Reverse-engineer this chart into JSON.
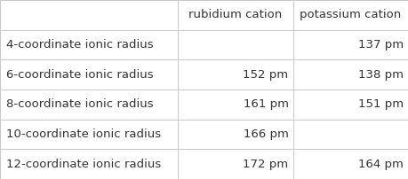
{
  "col_headers": [
    "",
    "rubidium cation",
    "potassium cation"
  ],
  "row_labels": [
    "4-coordinate ionic radius",
    "6-coordinate ionic radius",
    "8-coordinate ionic radius",
    "10-coordinate ionic radius",
    "12-coordinate ionic radius"
  ],
  "cell_data": [
    [
      "",
      "137 pm"
    ],
    [
      "152 pm",
      "138 pm"
    ],
    [
      "161 pm",
      "151 pm"
    ],
    [
      "166 pm",
      ""
    ],
    [
      "172 pm",
      "164 pm"
    ]
  ],
  "line_color": "#c8c8c8",
  "text_color": "#333333",
  "fontsize": 9.5,
  "fig_width": 4.59,
  "fig_height": 2.02,
  "dpi": 100,
  "bg_color": "#ffffff"
}
